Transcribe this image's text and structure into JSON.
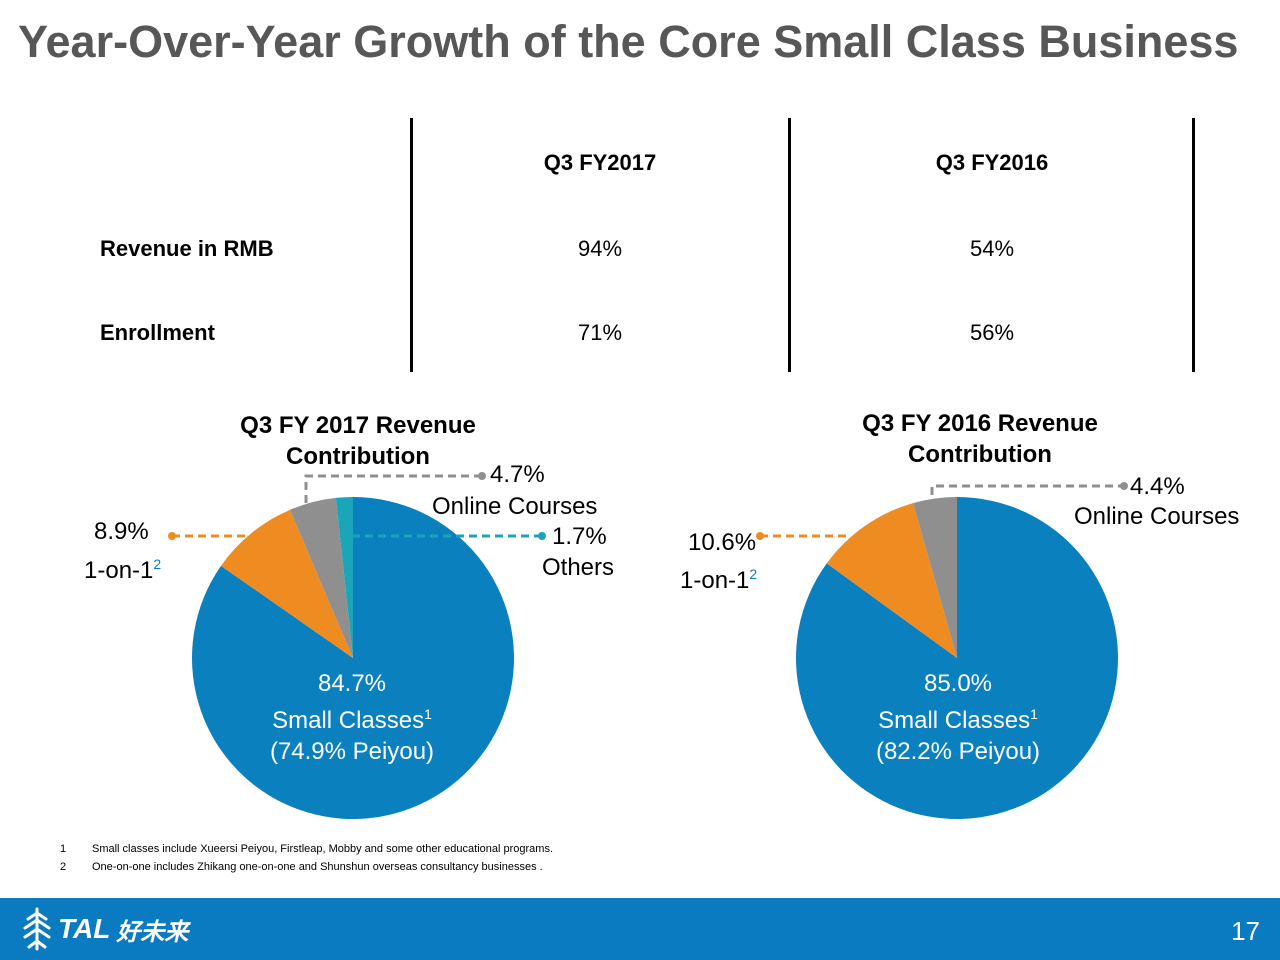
{
  "page": {
    "title": "Year-Over-Year Growth of the Core Small Class Business",
    "page_number": "17"
  },
  "table": {
    "headers": [
      "Q3 FY2017",
      "Q3 FY2016"
    ],
    "rows": [
      {
        "label": "Revenue in RMB",
        "values": [
          "94%",
          "54%"
        ]
      },
      {
        "label": "Enrollment",
        "values": [
          "71%",
          "56%"
        ]
      }
    ]
  },
  "chart_data": [
    {
      "type": "pie",
      "title": "Q3 FY 2017 Revenue Contribution",
      "title_lines": [
        "Q3 FY 2017 Revenue",
        "Contribution"
      ],
      "slices": [
        {
          "name": "Small Classes",
          "value": 84.7,
          "label": "84.7%",
          "display_name": "Small Classes",
          "sup": "1",
          "note": "(74.9% Peiyou)",
          "color": "#0a80bf"
        },
        {
          "name": "1-on-1",
          "value": 8.9,
          "label": "8.9%",
          "display_name": "1-on-1",
          "sup": "2",
          "color": "#ee8c22"
        },
        {
          "name": "Online Courses",
          "value": 4.7,
          "label": "4.7%",
          "display_name": "Online Courses",
          "color": "#8f8f8f"
        },
        {
          "name": "Others",
          "value": 1.7,
          "label": "1.7%",
          "display_name": "Others",
          "color": "#1aa6b8"
        }
      ]
    },
    {
      "type": "pie",
      "title": "Q3 FY 2016 Revenue Contribution",
      "title_lines": [
        "Q3 FY 2016 Revenue",
        "Contribution"
      ],
      "slices": [
        {
          "name": "Small Classes",
          "value": 85.0,
          "label": "85.0%",
          "display_name": "Small Classes",
          "sup": "1",
          "note": "(82.2% Peiyou)",
          "color": "#0a80bf"
        },
        {
          "name": "1-on-1",
          "value": 10.6,
          "label": "10.6%",
          "display_name": "1-on-1",
          "sup": "2",
          "color": "#ee8c22"
        },
        {
          "name": "Online Courses",
          "value": 4.4,
          "label": "4.4%",
          "display_name": "Online Courses",
          "color": "#8f8f8f"
        }
      ]
    }
  ],
  "footnotes": [
    {
      "num": "1",
      "text": "Small classes include Xueersi Peiyou, Firstleap, Mobby and some other educational programs."
    },
    {
      "num": "2",
      "text": "One-on-one includes Zhikang one-on-one and Shunshun overseas consultancy businesses ."
    }
  ],
  "logo": {
    "text": "TAL",
    "cn": "好未来",
    "icon": "tree-icon"
  },
  "colors": {
    "footer": "#0a7bc1",
    "title": "#575757"
  }
}
